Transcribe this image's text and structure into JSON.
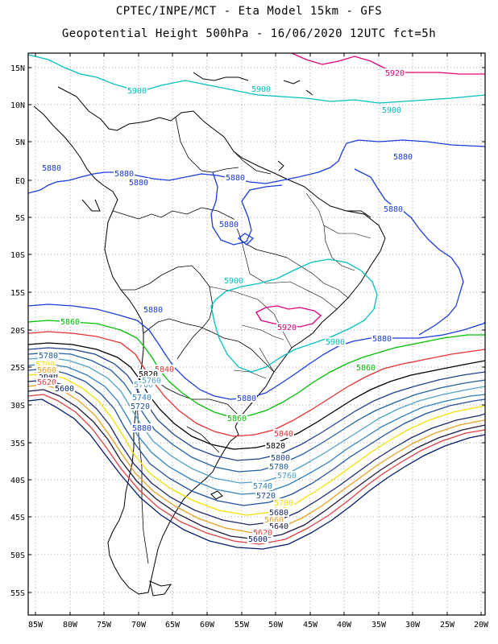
{
  "title_line1": "CPTEC/INPE/MCT -  Eta Model 15km - GFS",
  "title_line2": "Geopotential Height 500hPa - 16/06/2020 12UTC fct=5h",
  "lat_labels": [
    "15N",
    "10N",
    "5N",
    "EQ",
    "5S",
    "10S",
    "15S",
    "20S",
    "25S",
    "30S",
    "35S",
    "40S",
    "45S",
    "50S",
    "55S"
  ],
  "lon_labels": [
    "85W",
    "80W",
    "75W",
    "70W",
    "65W",
    "60W",
    "55W",
    "50W",
    "45W",
    "40W",
    "35W",
    "30W",
    "25W",
    "20W"
  ],
  "contour_colors": {
    "5600": "#001a6e",
    "5620": "#e04040",
    "5640": "#1a1a40",
    "5660": "#e8a020",
    "5680": "#1a2a70",
    "5700": "#f0e000",
    "5720": "#2050a0",
    "5740": "#3080c0",
    "5760": "#50a0c8",
    "5780": "#2060a0",
    "5800": "#204090",
    "5820": "#000000",
    "5840": "#e83030",
    "5860": "#00c000",
    "5880": "#1a3ce0",
    "5900": "#00c0c0",
    "5920": "#e0007a"
  },
  "contour_labels": [
    {
      "text": "5920",
      "color": "5920"
    },
    {
      "text": "5900",
      "color": "5900"
    },
    {
      "text": "5900",
      "color": "5900"
    },
    {
      "text": "5900",
      "color": "5900"
    },
    {
      "text": "5880",
      "color": "5880"
    },
    {
      "text": "5880",
      "color": "5880"
    },
    {
      "text": "5880",
      "color": "5880"
    },
    {
      "text": "5880",
      "color": "5880"
    },
    {
      "text": "5880",
      "color": "5880"
    },
    {
      "text": "5880",
      "color": "5880"
    },
    {
      "text": "5880",
      "color": "5880"
    },
    {
      "text": "5880",
      "color": "5880"
    },
    {
      "text": "5880",
      "color": "5880"
    },
    {
      "text": "5880",
      "color": "5880"
    },
    {
      "text": "5900",
      "color": "5900"
    },
    {
      "text": "5900",
      "color": "5900"
    },
    {
      "text": "5920",
      "color": "5920"
    },
    {
      "text": "5860",
      "color": "5860"
    },
    {
      "text": "5860",
      "color": "5860"
    },
    {
      "text": "5860",
      "color": "5860"
    },
    {
      "text": "5840",
      "color": "5840"
    },
    {
      "text": "5840",
      "color": "5840"
    },
    {
      "text": "5820",
      "color": "5820"
    },
    {
      "text": "5820",
      "color": "5820"
    },
    {
      "text": "5800",
      "color": "5800"
    },
    {
      "text": "5780",
      "color": "5780"
    },
    {
      "text": "5760",
      "color": "5760"
    },
    {
      "text": "5740",
      "color": "5740"
    },
    {
      "text": "5720",
      "color": "5720"
    },
    {
      "text": "5700",
      "color": "5700"
    },
    {
      "text": "5680",
      "color": "5680"
    },
    {
      "text": "5660",
      "color": "5660"
    },
    {
      "text": "5640",
      "color": "5640"
    },
    {
      "text": "5620",
      "color": "5620"
    },
    {
      "text": "5600",
      "color": "5600"
    },
    {
      "text": "5780",
      "color": "5780"
    },
    {
      "text": "5700",
      "color": "5700"
    },
    {
      "text": "5640",
      "color": "5640"
    },
    {
      "text": "5660",
      "color": "5660"
    },
    {
      "text": "5620",
      "color": "5620"
    },
    {
      "text": "5600",
      "color": "5600"
    },
    {
      "text": "5760",
      "color": "5760"
    },
    {
      "text": "5740",
      "color": "5740"
    },
    {
      "text": "5720",
      "color": "5720"
    },
    {
      "text": "5880",
      "color": "5880"
    },
    {
      "text": "5820",
      "color": "5820"
    },
    {
      "text": "5760",
      "color": "5760"
    }
  ]
}
